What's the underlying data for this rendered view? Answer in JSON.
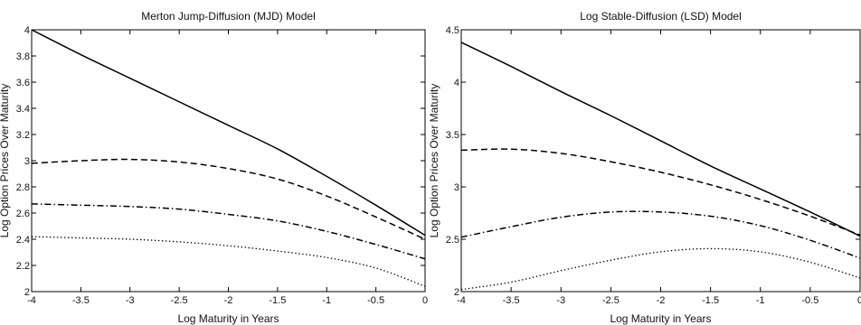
{
  "chart_data": [
    {
      "type": "line",
      "title": "Merton Jump-Diffusion (MJD) Model",
      "xlabel": "Log Maturity in Years",
      "ylabel": "Log Option Prices Over Maturity",
      "xlim": [
        -4,
        0
      ],
      "ylim": [
        2,
        4
      ],
      "xticks": [
        -4,
        -3.5,
        -3,
        -2.5,
        -2,
        -1.5,
        -1,
        -0.5,
        0
      ],
      "xtick_labels": [
        "-4",
        "-3.5",
        "-3",
        "-2.5",
        "-2",
        "-1.5",
        "-1",
        "-0.5",
        "0"
      ],
      "yticks": [
        2,
        2.2,
        2.4,
        2.6,
        2.8,
        3,
        3.2,
        3.4,
        3.6,
        3.8,
        4
      ],
      "ytick_labels": [
        "2",
        "2.2",
        "2.4",
        "2.6",
        "2.8",
        "3",
        "3.2",
        "3.4",
        "3.6",
        "3.8",
        "4"
      ],
      "grid": false,
      "series": [
        {
          "style": "solid",
          "x": [
            -4,
            -3.5,
            -3,
            -2.5,
            -2,
            -1.5,
            -1,
            -0.5,
            0
          ],
          "values": [
            4.0,
            3.81,
            3.63,
            3.45,
            3.27,
            3.09,
            2.88,
            2.66,
            2.43
          ]
        },
        {
          "style": "dashed",
          "x": [
            -4,
            -3.5,
            -3,
            -2.5,
            -2,
            -1.5,
            -1,
            -0.5,
            0
          ],
          "values": [
            2.98,
            3.0,
            3.01,
            2.99,
            2.94,
            2.86,
            2.73,
            2.57,
            2.4
          ]
        },
        {
          "style": "dashdot",
          "x": [
            -4,
            -3.5,
            -3,
            -2.5,
            -2,
            -1.5,
            -1,
            -0.5,
            0
          ],
          "values": [
            2.67,
            2.66,
            2.65,
            2.63,
            2.59,
            2.54,
            2.46,
            2.36,
            2.25
          ]
        },
        {
          "style": "dotted",
          "x": [
            -4,
            -3.5,
            -3,
            -2.5,
            -2,
            -1.5,
            -1,
            -0.5,
            0
          ],
          "values": [
            2.42,
            2.41,
            2.4,
            2.38,
            2.35,
            2.31,
            2.26,
            2.18,
            2.04
          ]
        }
      ]
    },
    {
      "type": "line",
      "title": "Log Stable-Diffusion (LSD) Model",
      "xlabel": "Log Maturity in Years",
      "ylabel": "Log Option Prices Over Maturity",
      "xlim": [
        -4,
        0
      ],
      "ylim": [
        2,
        4.5
      ],
      "xticks": [
        -4,
        -3.5,
        -3,
        -2.5,
        -2,
        -1.5,
        -1,
        -0.5,
        0
      ],
      "xtick_labels": [
        "-4",
        "-3.5",
        "-3",
        "-2.5",
        "-2",
        "-1.5",
        "-1",
        "-0.5",
        "0"
      ],
      "yticks": [
        2,
        2.5,
        3,
        3.5,
        4,
        4.5
      ],
      "ytick_labels": [
        "2",
        "2.5",
        "3",
        "3.5",
        "4",
        "4.5"
      ],
      "grid": false,
      "series": [
        {
          "style": "solid",
          "x": [
            -4,
            -3.5,
            -3,
            -2.5,
            -2,
            -1.5,
            -1,
            -0.5,
            0
          ],
          "values": [
            4.38,
            4.15,
            3.91,
            3.68,
            3.44,
            3.2,
            2.98,
            2.76,
            2.53
          ]
        },
        {
          "style": "dashed",
          "x": [
            -4,
            -3.5,
            -3,
            -2.5,
            -2,
            -1.5,
            -1,
            -0.5,
            0
          ],
          "values": [
            3.35,
            3.36,
            3.32,
            3.24,
            3.14,
            3.02,
            2.88,
            2.72,
            2.54
          ]
        },
        {
          "style": "dashdot",
          "x": [
            -4,
            -3.5,
            -3,
            -2.5,
            -2,
            -1.5,
            -1,
            -0.5,
            0
          ],
          "values": [
            2.52,
            2.62,
            2.71,
            2.76,
            2.76,
            2.72,
            2.63,
            2.49,
            2.32
          ]
        },
        {
          "style": "dotted",
          "x": [
            -4,
            -3.5,
            -3,
            -2.5,
            -2,
            -1.5,
            -1,
            -0.5,
            0
          ],
          "values": [
            2.02,
            2.09,
            2.2,
            2.3,
            2.38,
            2.41,
            2.38,
            2.28,
            2.13
          ]
        }
      ]
    }
  ]
}
